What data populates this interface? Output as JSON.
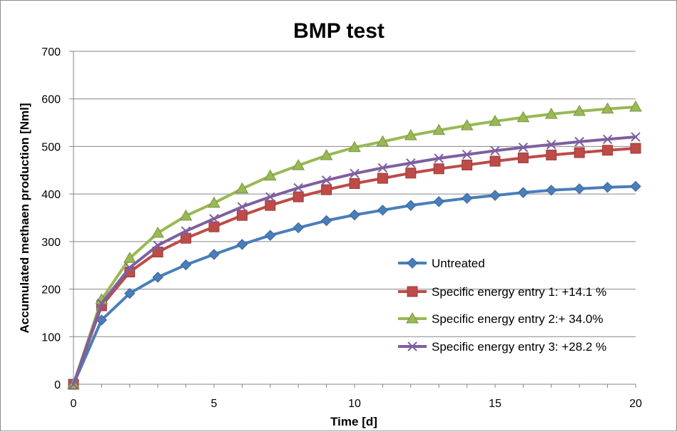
{
  "chart_data": {
    "type": "line",
    "title": "BMP test",
    "xlabel": "Time [d]",
    "ylabel": "Accumulated methaen production [Nml]",
    "xlim": [
      0,
      20
    ],
    "ylim": [
      0,
      700
    ],
    "x_ticks": [
      "0",
      "5",
      "10",
      "15",
      "20"
    ],
    "y_ticks": [
      "0",
      "100",
      "200",
      "300",
      "400",
      "500",
      "600",
      "700"
    ],
    "grid": "horizontal",
    "legend_position": "lower-right",
    "x": [
      0,
      1,
      2,
      3,
      4,
      5,
      6,
      7,
      8,
      9,
      10,
      11,
      12,
      13,
      14,
      15,
      16,
      17,
      18,
      19,
      20
    ],
    "series": [
      {
        "name": "Untreated",
        "color": "#4a7ebb",
        "marker": "diamond",
        "values": [
          0,
          135,
          191,
          225,
          251,
          273,
          294,
          313,
          329,
          344,
          356,
          366,
          376,
          384,
          391,
          397,
          403,
          408,
          411,
          414,
          416
        ]
      },
      {
        "name": "Specific energy entry 1: +14.1 %",
        "color": "#be4b48",
        "marker": "square",
        "values": [
          0,
          165,
          236,
          278,
          307,
          331,
          355,
          376,
          394,
          409,
          422,
          433,
          444,
          453,
          461,
          469,
          476,
          482,
          487,
          492,
          496
        ]
      },
      {
        "name": "Specific energy entry 2:+ 34.0%",
        "color": "#98b954",
        "marker": "triangle",
        "values": [
          0,
          178,
          265,
          318,
          354,
          381,
          411,
          438,
          460,
          481,
          498,
          510,
          523,
          534,
          544,
          553,
          561,
          568,
          574,
          579,
          583
        ]
      },
      {
        "name": "Specific energy entry 3: +28.2  %",
        "color": "#7d60a0",
        "marker": "x",
        "values": [
          0,
          170,
          245,
          292,
          322,
          348,
          373,
          394,
          413,
          429,
          443,
          455,
          465,
          475,
          483,
          491,
          498,
          504,
          510,
          515,
          520
        ]
      }
    ]
  }
}
